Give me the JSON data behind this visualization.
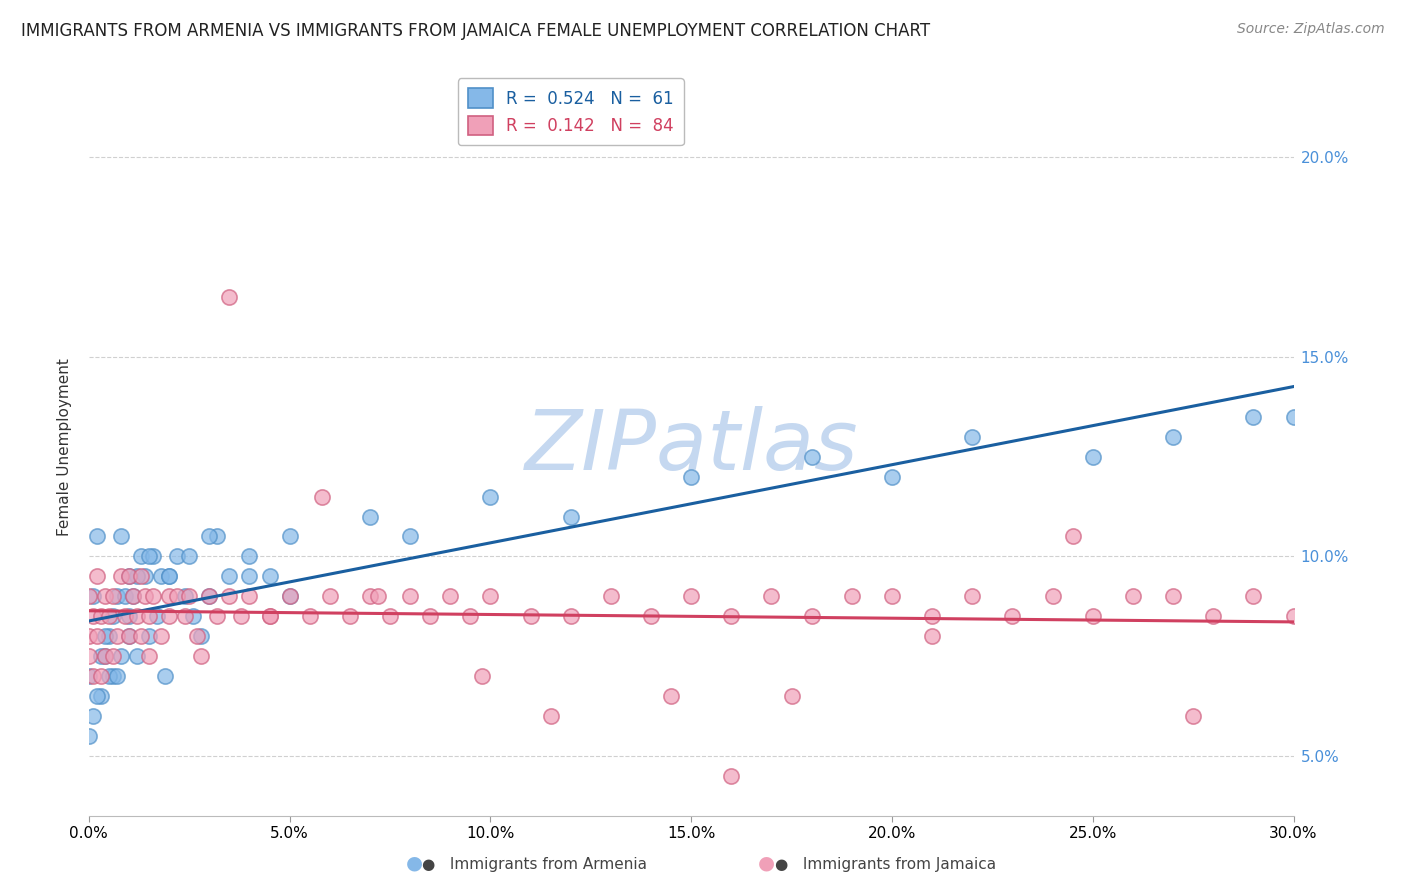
{
  "title": "IMMIGRANTS FROM ARMENIA VS IMMIGRANTS FROM JAMAICA FEMALE UNEMPLOYMENT CORRELATION CHART",
  "source": "Source: ZipAtlas.com",
  "watermark": "ZIPatlas",
  "armenia": {
    "label": "Immigrants from Armenia",
    "R": 0.524,
    "N": 61,
    "color": "#85b8e8",
    "edge_color": "#5090c8",
    "line_color": "#1a5fa0",
    "x": [
      0.0,
      0.1,
      0.2,
      0.3,
      0.4,
      0.5,
      0.6,
      0.7,
      0.8,
      0.9,
      1.0,
      1.1,
      1.2,
      1.3,
      1.4,
      1.5,
      1.6,
      1.7,
      1.8,
      1.9,
      2.0,
      2.2,
      2.4,
      2.6,
      2.8,
      3.0,
      3.2,
      3.5,
      4.0,
      4.5,
      5.0,
      0.0,
      0.1,
      0.2,
      0.3,
      0.4,
      0.5,
      0.6,
      0.7,
      0.8,
      1.0,
      1.2,
      1.5,
      2.0,
      2.5,
      3.0,
      4.0,
      5.0,
      7.0,
      8.0,
      10.0,
      12.0,
      15.0,
      18.0,
      20.0,
      22.0,
      25.0,
      27.0,
      29.0,
      30.0,
      1.0
    ],
    "y": [
      7.0,
      9.0,
      10.5,
      6.5,
      7.5,
      8.0,
      7.0,
      9.0,
      10.5,
      9.0,
      8.0,
      9.0,
      7.5,
      10.0,
      9.5,
      8.0,
      10.0,
      8.5,
      9.5,
      7.0,
      9.5,
      10.0,
      9.0,
      8.5,
      8.0,
      9.0,
      10.5,
      9.5,
      10.0,
      9.5,
      9.0,
      5.5,
      6.0,
      6.5,
      7.5,
      8.0,
      7.0,
      8.5,
      7.0,
      7.5,
      8.5,
      9.5,
      10.0,
      9.5,
      10.0,
      10.5,
      9.5,
      10.5,
      11.0,
      10.5,
      11.5,
      11.0,
      12.0,
      12.5,
      12.0,
      13.0,
      12.5,
      13.0,
      13.5,
      13.5,
      9.5
    ]
  },
  "jamaica": {
    "label": "Immigrants from Jamaica",
    "R": 0.142,
    "N": 84,
    "color": "#f0a0b8",
    "edge_color": "#d06080",
    "line_color": "#d04060",
    "x": [
      0.0,
      0.0,
      0.0,
      0.1,
      0.1,
      0.2,
      0.2,
      0.3,
      0.3,
      0.4,
      0.4,
      0.5,
      0.6,
      0.7,
      0.8,
      0.9,
      1.0,
      1.0,
      1.1,
      1.2,
      1.3,
      1.4,
      1.5,
      1.5,
      1.6,
      1.8,
      2.0,
      2.0,
      2.2,
      2.4,
      2.5,
      2.7,
      3.0,
      3.2,
      3.5,
      3.8,
      4.0,
      4.5,
      5.0,
      5.5,
      6.0,
      6.5,
      7.0,
      7.5,
      8.0,
      8.5,
      9.0,
      9.5,
      10.0,
      11.0,
      12.0,
      13.0,
      14.0,
      15.0,
      16.0,
      17.0,
      18.0,
      19.0,
      20.0,
      21.0,
      22.0,
      23.0,
      24.0,
      25.0,
      26.0,
      27.0,
      28.0,
      29.0,
      30.0,
      0.6,
      1.3,
      2.8,
      3.5,
      5.8,
      7.2,
      9.8,
      11.5,
      14.5,
      17.5,
      21.0,
      24.5,
      27.5,
      16.0,
      4.5
    ],
    "y": [
      7.5,
      8.0,
      9.0,
      7.0,
      8.5,
      8.0,
      9.5,
      8.5,
      7.0,
      9.0,
      7.5,
      8.5,
      9.0,
      8.0,
      9.5,
      8.5,
      8.0,
      9.5,
      9.0,
      8.5,
      8.0,
      9.0,
      8.5,
      7.5,
      9.0,
      8.0,
      9.0,
      8.5,
      9.0,
      8.5,
      9.0,
      8.0,
      9.0,
      8.5,
      9.0,
      8.5,
      9.0,
      8.5,
      9.0,
      8.5,
      9.0,
      8.5,
      9.0,
      8.5,
      9.0,
      8.5,
      9.0,
      8.5,
      9.0,
      8.5,
      8.5,
      9.0,
      8.5,
      9.0,
      8.5,
      9.0,
      8.5,
      9.0,
      9.0,
      8.5,
      9.0,
      8.5,
      9.0,
      8.5,
      9.0,
      9.0,
      8.5,
      9.0,
      8.5,
      7.5,
      9.5,
      7.5,
      16.5,
      11.5,
      9.0,
      7.0,
      6.0,
      6.5,
      6.5,
      8.0,
      10.5,
      6.0,
      4.5,
      8.5
    ]
  },
  "xlim": [
    0.0,
    30.0
  ],
  "ylim": [
    3.5,
    22.0
  ],
  "xlabel_pct_ticks": [
    0.0,
    5.0,
    10.0,
    15.0,
    20.0,
    25.0,
    30.0
  ],
  "ylabel_pct_ticks": [
    5.0,
    10.0,
    15.0,
    20.0
  ],
  "title_fontsize": 12,
  "source_fontsize": 10,
  "watermark_color": "#c5d8f0",
  "background_color": "#ffffff",
  "grid_color": "#d0d0d0"
}
